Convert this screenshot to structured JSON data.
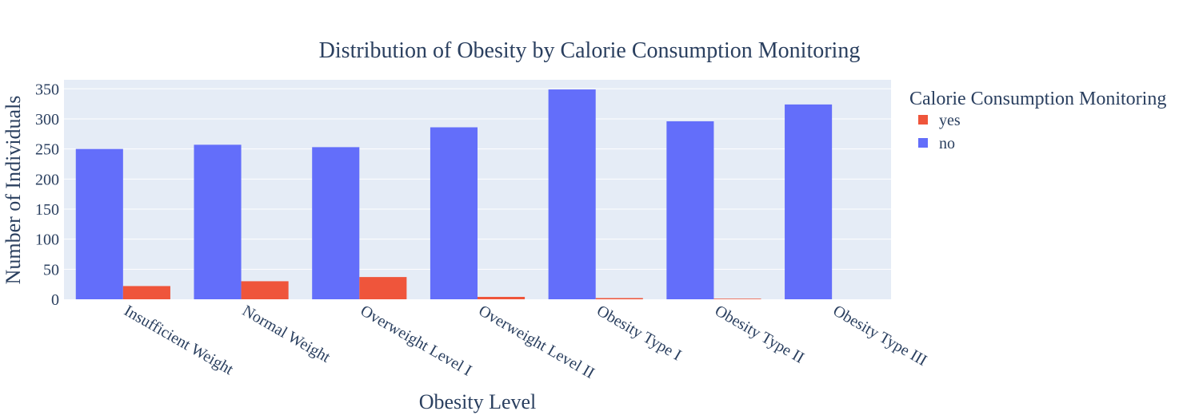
{
  "chart_data": {
    "type": "bar",
    "title": "Distribution of Obesity by Calorie Consumption Monitoring",
    "xlabel": "Obesity Level",
    "ylabel": "Number of Individuals",
    "categories": [
      "Insufficient Weight",
      "Normal Weight",
      "Overweight Level I",
      "Overweight Level II",
      "Obesity Type I",
      "Obesity Type II",
      "Obesity Type III"
    ],
    "series": [
      {
        "name": "no",
        "color": "#636efa",
        "values": [
          250,
          257,
          253,
          286,
          349,
          296,
          324
        ]
      },
      {
        "name": "yes",
        "color": "#ef553b",
        "values": [
          22,
          30,
          37,
          4,
          2,
          1,
          0
        ]
      }
    ],
    "ylim": [
      0,
      365
    ],
    "yticks": [
      0,
      50,
      100,
      150,
      200,
      250,
      300,
      350
    ],
    "grid": true,
    "legend": {
      "title": "Calorie Consumption Monitoring",
      "placement": "right",
      "order": [
        "yes",
        "no"
      ]
    },
    "colors": {
      "plot_background": "#e5ecf6",
      "text": "#2a3f5f"
    }
  }
}
